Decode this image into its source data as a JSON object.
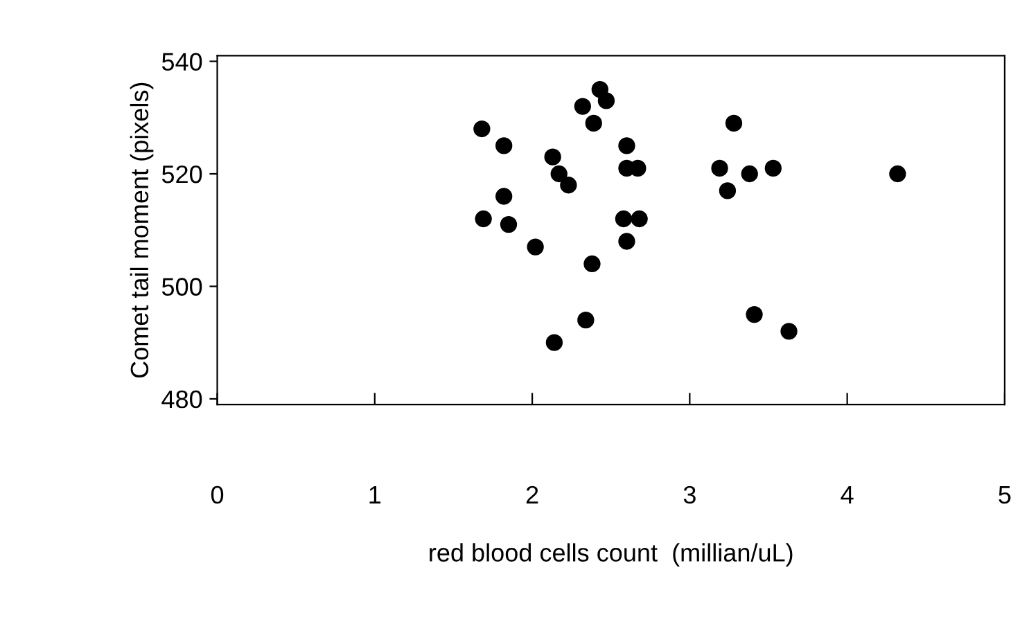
{
  "chart_data": {
    "type": "scatter",
    "xlabel": "red blood cells count  (millian/uL)",
    "ylabel": "Comet tail moment (pixels)",
    "x": [
      1.68,
      1.82,
      1.69,
      1.82,
      1.85,
      2.02,
      2.13,
      2.17,
      2.23,
      2.14,
      2.34,
      2.38,
      2.32,
      2.39,
      2.43,
      2.47,
      2.6,
      2.6,
      2.67,
      2.58,
      2.68,
      2.6,
      3.28,
      3.19,
      3.38,
      3.53,
      3.24,
      3.41,
      3.63,
      4.32
    ],
    "values": [
      528,
      525,
      512,
      516,
      511,
      507,
      523,
      520,
      518,
      490,
      494,
      504,
      532,
      529,
      535,
      533,
      525,
      521,
      521,
      512,
      512,
      508,
      529,
      521,
      520,
      521,
      517,
      495,
      492,
      520
    ],
    "color": "#000000",
    "marker": "circle",
    "xlim": [
      0,
      5
    ],
    "xticks": [
      0,
      1,
      2,
      3,
      4,
      5
    ],
    "ylim": [
      479,
      541
    ],
    "yticks": [
      480,
      500,
      520,
      540
    ],
    "grid": false,
    "legend": false
  }
}
